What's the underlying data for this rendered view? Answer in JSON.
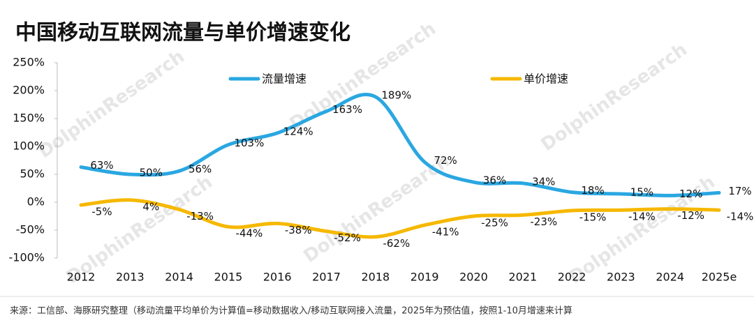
{
  "chart_data": {
    "type": "line",
    "title": "中国移动互联网流量与单价增速变化",
    "watermark": "DolphinResearch",
    "note": "来源：工信部、海豚研究整理（移动流量平均单价为计算值=移动数据收入/移动互联网接入流量，2025年为预估值，按照1-10月增速来计算",
    "categories": [
      "2012",
      "2013",
      "2014",
      "2015",
      "2016",
      "2017",
      "2018",
      "2019",
      "2020",
      "2021",
      "2022",
      "2023",
      "2024",
      "2025e"
    ],
    "series": [
      {
        "name": "流量增速",
        "color": "#2aa7e1",
        "values": [
          63,
          50,
          56,
          103,
          124,
          163,
          189,
          72,
          36,
          34,
          18,
          15,
          12,
          17
        ],
        "value_labels": [
          "63%",
          "50%",
          "56%",
          "103%",
          "124%",
          "163%",
          "189%",
          "72%",
          "36%",
          "34%",
          "18%",
          "15%",
          "12%",
          "17%"
        ]
      },
      {
        "name": "单价增速",
        "color": "#f6b800",
        "values": [
          -5,
          4,
          -13,
          -44,
          -38,
          -52,
          -62,
          -41,
          -25,
          -23,
          -15,
          -14,
          -12,
          -14
        ],
        "value_labels": [
          "-5%",
          "4%",
          "-13%",
          "-44%",
          "-38%",
          "-52%",
          "-62%",
          "-41%",
          "-25%",
          "-23%",
          "-15%",
          "-14%",
          "-12%",
          "-14%"
        ]
      }
    ],
    "ylim": [
      -100,
      250
    ],
    "yticks": [
      {
        "value": -100,
        "label": "-100%"
      },
      {
        "value": -50,
        "label": "-50%"
      },
      {
        "value": 0,
        "label": "0%"
      },
      {
        "value": 50,
        "label": "50%"
      },
      {
        "value": 100,
        "label": "100%"
      },
      {
        "value": 150,
        "label": "150%"
      },
      {
        "value": 200,
        "label": "200%"
      },
      {
        "value": 250,
        "label": "250%"
      }
    ]
  }
}
